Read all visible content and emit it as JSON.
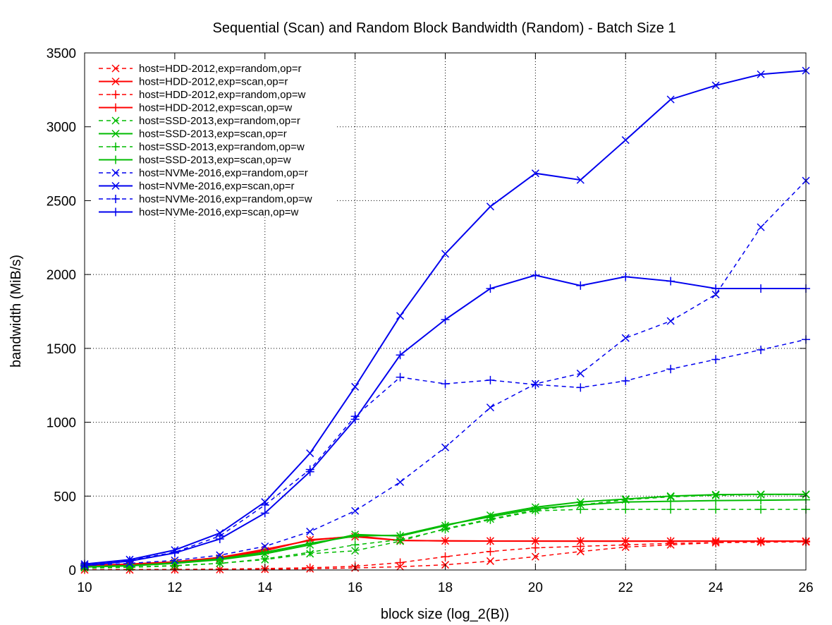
{
  "chart_data": {
    "type": "line",
    "title": "Sequential (Scan) and Random Block Bandwidth (Random) - Batch Size 1",
    "xlabel": "block size (log_2(B))",
    "ylabel": "bandwidth (MiB/s)",
    "xlim": [
      10,
      26
    ],
    "ylim": [
      0,
      3500
    ],
    "xticks": [
      10,
      12,
      14,
      16,
      18,
      20,
      22,
      24,
      26
    ],
    "yticks": [
      0,
      500,
      1000,
      1500,
      2000,
      2500,
      3000,
      3500
    ],
    "grid": true,
    "legend_position": "top-left",
    "x": [
      10,
      11,
      12,
      13,
      14,
      15,
      16,
      17,
      18,
      19,
      20,
      21,
      22,
      23,
      24,
      25,
      26
    ],
    "series": [
      {
        "name": "host=HDD-2012,exp=random,op=r",
        "color": "#ff0000",
        "dash": true,
        "marker": "x",
        "values": [
          1,
          1,
          2,
          3,
          5,
          8,
          14,
          22,
          35,
          60,
          90,
          125,
          155,
          170,
          185,
          190,
          190
        ]
      },
      {
        "name": "host=HDD-2012,exp=scan,op=r",
        "color": "#ff0000",
        "dash": false,
        "marker": "x",
        "values": [
          25,
          35,
          50,
          80,
          130,
          205,
          225,
          200,
          197,
          196,
          196,
          195,
          195,
          195,
          195,
          195,
          195
        ]
      },
      {
        "name": "host=HDD-2012,exp=random,op=w",
        "color": "#ff0000",
        "dash": true,
        "marker": "+",
        "values": [
          2,
          3,
          4,
          6,
          10,
          15,
          25,
          50,
          90,
          125,
          150,
          160,
          170,
          180,
          185,
          188,
          190
        ]
      },
      {
        "name": "host=HDD-2012,exp=scan,op=w",
        "color": "#ff0000",
        "dash": false,
        "marker": "+",
        "values": [
          30,
          40,
          55,
          85,
          140,
          200,
          230,
          200,
          197,
          196,
          195,
          195,
          195,
          195,
          195,
          195,
          195
        ]
      },
      {
        "name": "host=SSD-2013,exp=random,op=r",
        "color": "#00bb00",
        "dash": true,
        "marker": "x",
        "values": [
          15,
          20,
          30,
          45,
          70,
          110,
          130,
          195,
          280,
          345,
          405,
          440,
          475,
          495,
          505,
          510,
          510
        ]
      },
      {
        "name": "host=SSD-2013,exp=scan,op=r",
        "color": "#00bb00",
        "dash": false,
        "marker": "x",
        "values": [
          20,
          28,
          45,
          70,
          110,
          170,
          240,
          230,
          300,
          370,
          425,
          460,
          480,
          500,
          510,
          512,
          512
        ]
      },
      {
        "name": "host=SSD-2013,exp=random,op=w",
        "color": "#00bb00",
        "dash": true,
        "marker": "+",
        "values": [
          12,
          18,
          28,
          45,
          75,
          120,
          170,
          205,
          275,
          340,
          400,
          410,
          410,
          410,
          410,
          410,
          410
        ]
      },
      {
        "name": "host=SSD-2013,exp=scan,op=w",
        "color": "#00bb00",
        "dash": false,
        "marker": "+",
        "values": [
          22,
          30,
          48,
          75,
          120,
          180,
          230,
          235,
          305,
          360,
          415,
          440,
          460,
          465,
          470,
          472,
          475
        ]
      },
      {
        "name": "host=NVMe-2016,exp=random,op=r",
        "color": "#0000ee",
        "dash": true,
        "marker": "x",
        "values": [
          30,
          45,
          65,
          100,
          160,
          260,
          400,
          595,
          830,
          1100,
          1260,
          1330,
          1570,
          1685,
          1865,
          2320,
          2635
        ]
      },
      {
        "name": "host=NVMe-2016,exp=scan,op=r",
        "color": "#0000ee",
        "dash": false,
        "marker": "x",
        "values": [
          40,
          70,
          135,
          250,
          460,
          790,
          1240,
          1720,
          2140,
          2460,
          2685,
          2640,
          2910,
          3185,
          3280,
          3355,
          3380
        ]
      },
      {
        "name": "host=NVMe-2016,exp=random,op=w",
        "color": "#0000ee",
        "dash": true,
        "marker": "+",
        "values": [
          40,
          65,
          120,
          230,
          440,
          680,
          1040,
          1305,
          1260,
          1285,
          1255,
          1235,
          1280,
          1360,
          1425,
          1490,
          1560
        ]
      },
      {
        "name": "host=NVMe-2016,exp=scan,op=w",
        "color": "#0000ee",
        "dash": false,
        "marker": "+",
        "values": [
          30,
          60,
          115,
          210,
          385,
          665,
          1020,
          1455,
          1695,
          1905,
          1995,
          1925,
          1985,
          1955,
          1905,
          1905,
          1905
        ]
      }
    ]
  }
}
